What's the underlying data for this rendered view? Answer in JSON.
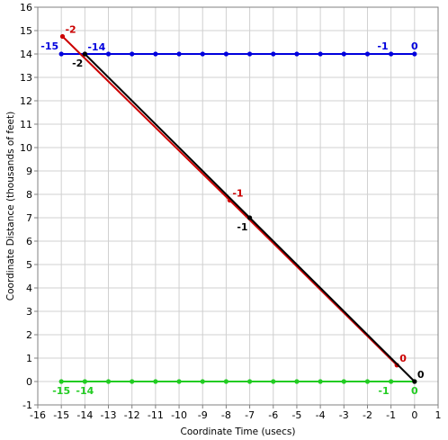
{
  "chart_data": {
    "type": "line",
    "title": "",
    "xlabel": "Coordinate Time (usecs)",
    "ylabel": "Coordinate Distance (thousands of feet)",
    "xlim": [
      -16,
      1
    ],
    "ylim": [
      -1,
      16
    ],
    "xticks": [
      "-16",
      "-15",
      "-14",
      "-13",
      "-12",
      "-11",
      "-10",
      "-9",
      "-8",
      "-7",
      "-6",
      "-5",
      "-4",
      "-3",
      "-2",
      "-1",
      "0",
      "1"
    ],
    "yticks": [
      "-1",
      "0",
      "1",
      "2",
      "3",
      "4",
      "5",
      "6",
      "7",
      "8",
      "9",
      "10",
      "11",
      "12",
      "13",
      "14",
      "15",
      "16"
    ],
    "grid": true,
    "colors": {
      "blue": "#0000dd",
      "green": "#22cc22",
      "red": "#cc0000",
      "black": "#000000",
      "grid": "#d0d0d0"
    },
    "series": [
      {
        "color": "blue",
        "x": [
          -15,
          -14,
          -13,
          -12,
          -11,
          -10,
          -9,
          -8,
          -7,
          -6,
          -5,
          -4,
          -3,
          -2,
          -1,
          0
        ],
        "y": [
          14,
          14,
          14,
          14,
          14,
          14,
          14,
          14,
          14,
          14,
          14,
          14,
          14,
          14,
          14,
          14
        ]
      },
      {
        "color": "green",
        "x": [
          -15,
          -14,
          -13,
          -12,
          -11,
          -10,
          -9,
          -8,
          -7,
          -6,
          -5,
          -4,
          -3,
          -2,
          -1,
          0
        ],
        "y": [
          0,
          0,
          0,
          0,
          0,
          0,
          0,
          0,
          0,
          0,
          0,
          0,
          0,
          0,
          0,
          0
        ]
      },
      {
        "color": "red",
        "x": [
          -14.95,
          -7.85,
          -0.75
        ],
        "y": [
          14.75,
          7.75,
          0.7
        ]
      },
      {
        "color": "black",
        "x": [
          -14,
          -7,
          0
        ],
        "y": [
          14,
          7,
          0
        ]
      }
    ],
    "annotations": [
      {
        "text": "-15",
        "x": -15,
        "y": 14,
        "color": "blue",
        "anchor": "left-above"
      },
      {
        "text": "-14",
        "x": -14,
        "y": 14,
        "color": "blue",
        "anchor": "right-above"
      },
      {
        "text": "-1",
        "x": -1,
        "y": 14,
        "color": "blue",
        "anchor": "left-above"
      },
      {
        "text": "0",
        "x": 0,
        "y": 14,
        "color": "blue",
        "anchor": "center-above"
      },
      {
        "text": "-15",
        "x": -15,
        "y": 0,
        "color": "green",
        "anchor": "center-below"
      },
      {
        "text": "-14",
        "x": -14,
        "y": 0,
        "color": "green",
        "anchor": "center-below"
      },
      {
        "text": "-1",
        "x": -1,
        "y": 0,
        "color": "green",
        "anchor": "left-below"
      },
      {
        "text": "0",
        "x": 0,
        "y": 0,
        "color": "green",
        "anchor": "center-below"
      },
      {
        "text": "-2",
        "x": -14.95,
        "y": 14.75,
        "color": "red",
        "anchor": "right-above"
      },
      {
        "text": "-1",
        "x": -7.85,
        "y": 7.75,
        "color": "red",
        "anchor": "right-above"
      },
      {
        "text": "0",
        "x": -0.75,
        "y": 0.7,
        "color": "red",
        "anchor": "right-above"
      },
      {
        "text": "-2",
        "x": -14,
        "y": 14,
        "color": "black",
        "anchor": "left-below"
      },
      {
        "text": "-1",
        "x": -7,
        "y": 7,
        "color": "black",
        "anchor": "left-below"
      },
      {
        "text": "0",
        "x": 0,
        "y": 0,
        "color": "black",
        "anchor": "right-above"
      }
    ]
  }
}
